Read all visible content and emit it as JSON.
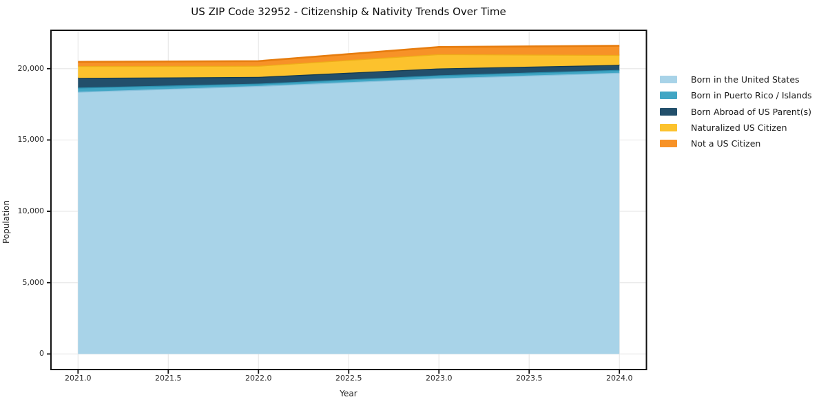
{
  "title": "US ZIP Code 32952 - Citizenship & Nativity Trends Over Time",
  "chart_data": {
    "type": "area",
    "stacked": true,
    "title": "US ZIP Code 32952 - Citizenship & Nativity Trends Over Time",
    "xlabel": "Year",
    "ylabel": "Population",
    "x": [
      2021,
      2022,
      2023,
      2024
    ],
    "series": [
      {
        "name": "Born in the United States",
        "values": [
          18380,
          18790,
          19330,
          19715
        ],
        "fill": "#a8d3e8",
        "edge": "#8ac2dd"
      },
      {
        "name": "Born in Puerto Rico / Islands",
        "values": [
          290,
          160,
          205,
          195
        ],
        "fill": "#41a6c4",
        "edge": "#2b8fae"
      },
      {
        "name": "Born Abroad of US Parent(s)",
        "values": [
          680,
          470,
          480,
          355
        ],
        "fill": "#224f6b",
        "edge": "#143a50"
      },
      {
        "name": "Naturalized US Citizen",
        "values": [
          830,
          780,
          1000,
          695
        ],
        "fill": "#fcc22d",
        "edge": "#eead18"
      },
      {
        "name": "Not a US Citizen",
        "values": [
          295,
          330,
          505,
          645
        ],
        "fill": "#f79227",
        "edge": "#e67c0e"
      }
    ],
    "x_ticks": {
      "values": [
        2021,
        2021.5,
        2022,
        2022.5,
        2023,
        2023.5,
        2024
      ],
      "labels": [
        "2021.0",
        "2021.5",
        "2022.0",
        "2022.5",
        "2023.0",
        "2023.5",
        "2024.0"
      ]
    },
    "y_ticks": {
      "values": [
        0,
        5000,
        10000,
        15000,
        20000
      ],
      "labels": [
        "0",
        "5,000",
        "10,000",
        "15,000",
        "20,000"
      ]
    },
    "xlim": [
      2020.85,
      2024.15
    ],
    "ylim": [
      -1090,
      22690
    ],
    "grid": true,
    "legend_position": "right"
  },
  "colors": {
    "spine": "#111111",
    "grid": "#e8e8e8",
    "tick": "#111111"
  }
}
